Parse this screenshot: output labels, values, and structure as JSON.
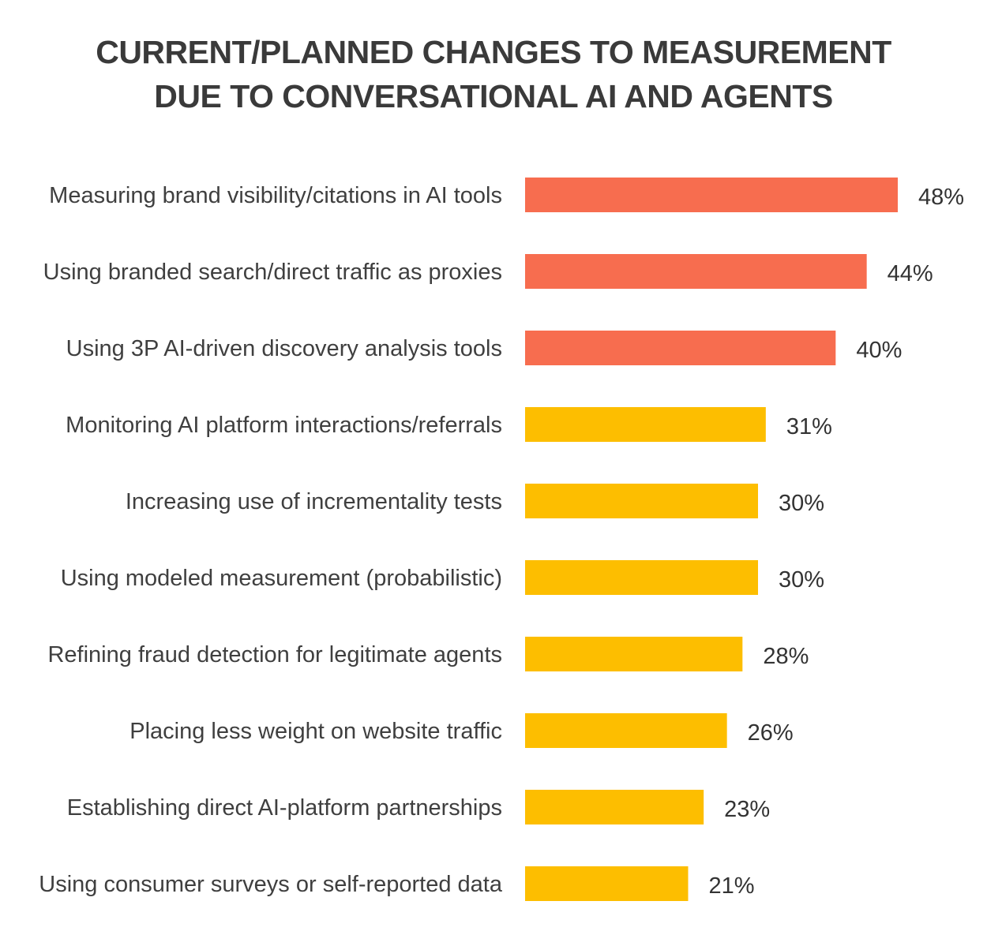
{
  "chart_data": {
    "type": "bar",
    "orientation": "horizontal",
    "title_lines": [
      "CURRENT/PLANNED CHANGES TO MEASUREMENT",
      "DUE TO CONVERSATIONAL AI AND AGENTS"
    ],
    "categories": [
      "Measuring brand visibility/citations in AI tools",
      "Using branded search/direct traffic as proxies",
      "Using 3P AI-driven discovery analysis tools",
      "Monitoring AI platform interactions/referrals",
      "Increasing use of incrementality tests",
      "Using modeled measurement (probabilistic)",
      "Refining fraud detection for legitimate agents",
      "Placing less weight on website traffic",
      "Establishing direct AI-platform partnerships",
      "Using consumer surveys or self-reported data"
    ],
    "values": [
      48,
      44,
      40,
      31,
      30,
      30,
      28,
      26,
      23,
      21
    ],
    "value_labels": [
      "48%",
      "44%",
      "40%",
      "31%",
      "30%",
      "30%",
      "28%",
      "26%",
      "23%",
      "21%"
    ],
    "unit": "%",
    "xlim": [
      0,
      48
    ],
    "grid": false,
    "legend": "none",
    "colors": {
      "top": "#F76D4F",
      "rest": "#FDBE00"
    },
    "highlight_top_count": 3
  }
}
